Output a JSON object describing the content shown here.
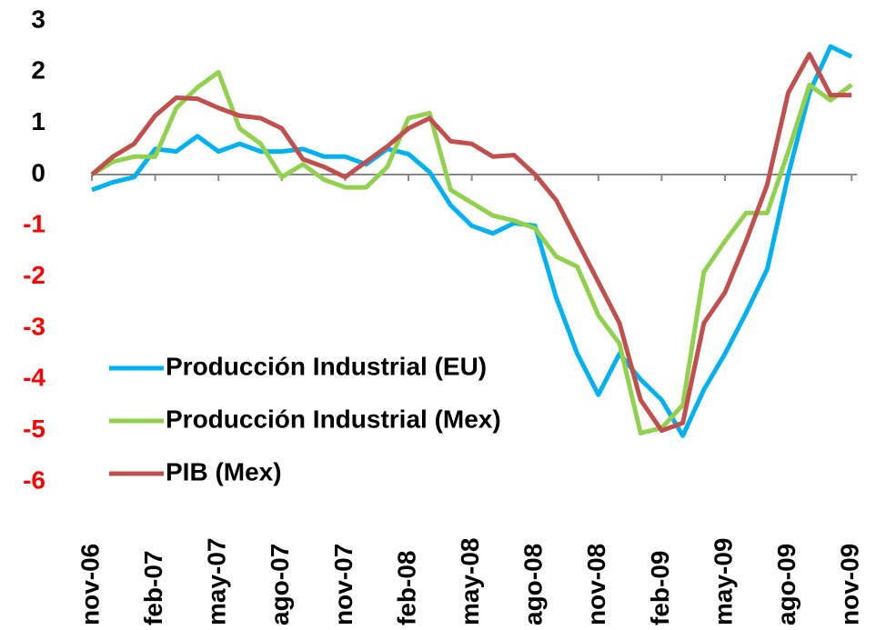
{
  "chart_data": {
    "type": "line",
    "categories": [
      "nov-06",
      null,
      null,
      "feb-07",
      null,
      null,
      "may-07",
      null,
      null,
      "ago-07",
      null,
      null,
      "nov-07",
      null,
      null,
      "feb-08",
      null,
      null,
      "may-08",
      null,
      null,
      "ago-08",
      null,
      null,
      "nov-08",
      null,
      null,
      "feb-09",
      null,
      null,
      "may-09",
      null,
      null,
      "ago-09",
      null,
      null,
      "nov-09"
    ],
    "series": [
      {
        "name": "Producción Industrial (EU)",
        "color": "#00b0f0",
        "values": [
          -0.3,
          -0.15,
          -0.05,
          0.5,
          0.45,
          0.75,
          0.45,
          0.6,
          0.45,
          0.45,
          0.5,
          0.35,
          0.35,
          0.2,
          0.5,
          0.4,
          0.05,
          -0.6,
          -1.0,
          -1.15,
          -0.95,
          -1.0,
          -2.4,
          -3.5,
          -4.3,
          -3.5,
          -4.0,
          -4.4,
          -5.1,
          -4.2,
          -3.5,
          -2.7,
          -1.85,
          0.0,
          1.6,
          2.5,
          2.3
        ]
      },
      {
        "name": "Producción Industrial (Mex)",
        "color": "#92d050",
        "values": [
          0,
          0.25,
          0.35,
          0.35,
          1.3,
          1.7,
          2.0,
          0.9,
          0.6,
          -0.05,
          0.2,
          -0.1,
          -0.25,
          -0.25,
          0.15,
          1.1,
          1.2,
          -0.3,
          -0.55,
          -0.8,
          -0.9,
          -1.05,
          -1.6,
          -1.8,
          -2.75,
          -3.3,
          -5.05,
          -4.95,
          -4.5,
          -1.9,
          -1.3,
          -0.75,
          -0.75,
          0.45,
          1.75,
          1.45,
          1.75
        ]
      },
      {
        "name": "PIB (Mex)",
        "color": "#c0504d",
        "values": [
          0,
          0.35,
          0.6,
          1.15,
          1.5,
          1.48,
          1.3,
          1.15,
          1.1,
          0.9,
          0.3,
          0.15,
          -0.05,
          0.25,
          0.55,
          0.9,
          1.1,
          0.65,
          0.6,
          0.35,
          0.38,
          0.0,
          -0.5,
          -1.3,
          -2.1,
          -2.9,
          -4.4,
          -5.0,
          -4.85,
          -2.9,
          -2.3,
          -1.3,
          -0.2,
          1.6,
          2.35,
          1.55,
          1.55
        ]
      }
    ],
    "ylim": [
      -6,
      3
    ],
    "yticks": [
      -6,
      -5,
      -4,
      -3,
      -2,
      -1,
      0,
      1,
      2,
      3
    ],
    "negative_tick_color": "#ff0000",
    "grid": false,
    "legend": "lower-left"
  }
}
